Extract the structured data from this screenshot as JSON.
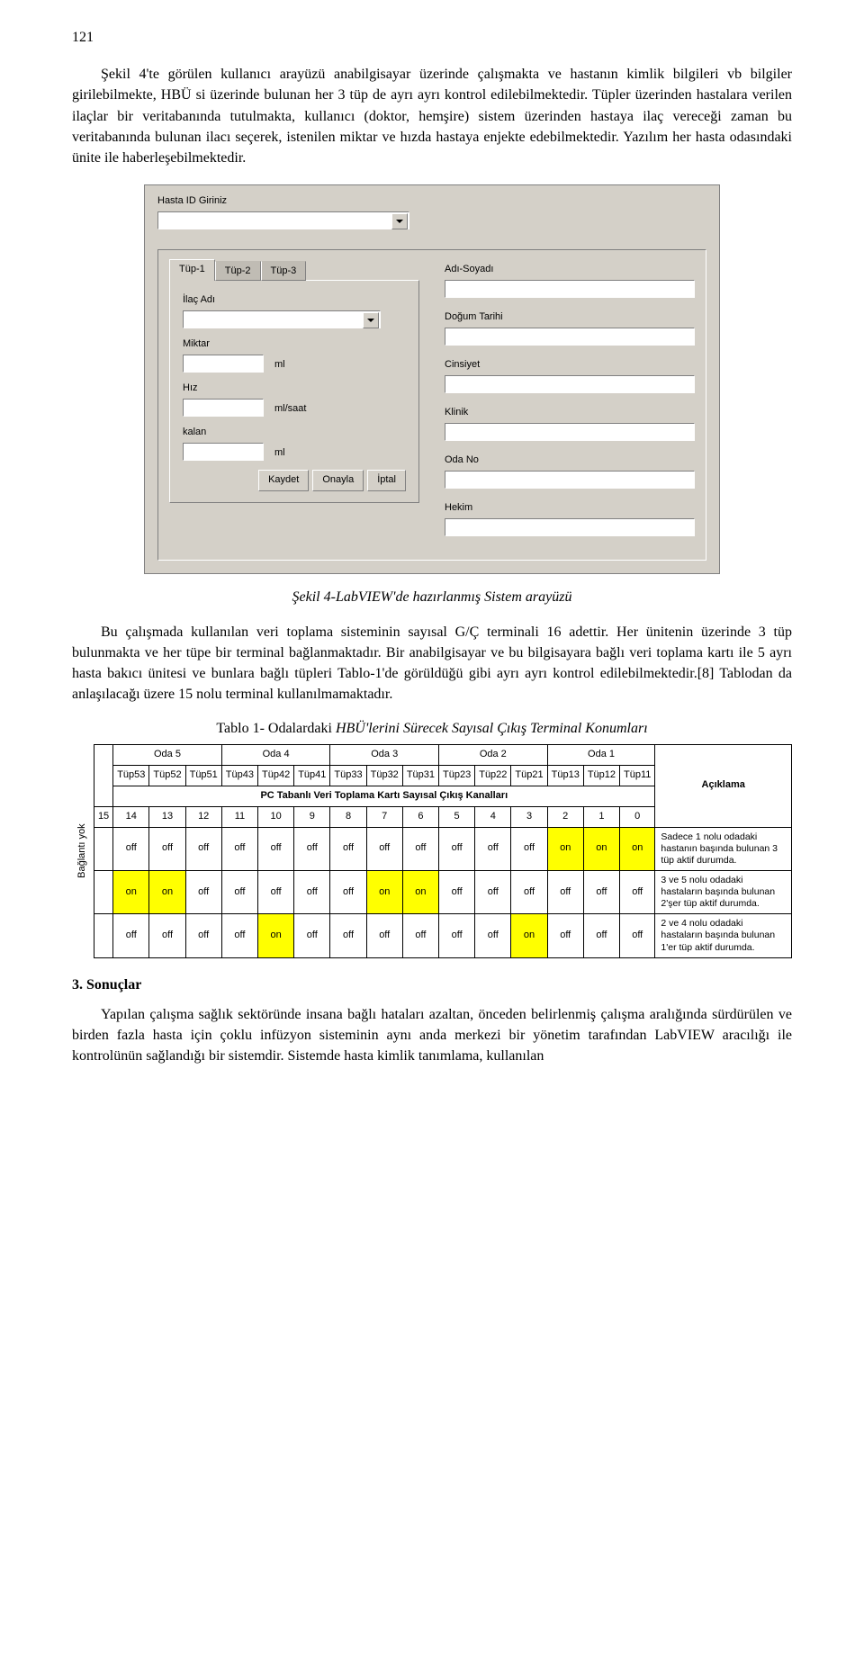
{
  "pageNumber": "121",
  "para1": "Şekil 4'te görülen kullanıcı arayüzü anabilgisayar üzerinde çalışmakta ve hastanın kimlik bilgileri vb bilgiler girilebilmekte, HBÜ si üzerinde bulunan her 3 tüp de ayrı ayrı kontrol edilebilmektedir. Tüpler üzerinden hastalara verilen ilaçlar bir veritabanında tutulmakta, kullanıcı (doktor, hemşire) sistem üzerinden hastaya ilaç vereceği zaman bu veritabanında bulunan ilacı seçerek, istenilen miktar ve hızda hastaya enjekte edebilmektedir. Yazılım her hasta odasındaki ünite ile haberleşebilmektedir.",
  "ui": {
    "hastaIdLabel": "Hasta ID Giriniz",
    "tabs": [
      "Tüp-1",
      "Tüp-2",
      "Tüp-3"
    ],
    "ilacAdi": "İlaç Adı",
    "miktar": "Miktar",
    "miktarUnit": "ml",
    "hiz": "Hız",
    "hizUnit": "ml/saat",
    "kalan": "kalan",
    "kalanUnit": "ml",
    "buttons": {
      "kaydet": "Kaydet",
      "onayla": "Onayla",
      "iptal": "İptal"
    },
    "right": {
      "adSoyad": "Adı-Soyadı",
      "dogumTarihi": "Doğum Tarihi",
      "cinsiyet": "Cinsiyet",
      "klinik": "Klinik",
      "odaNo": "Oda No",
      "hekim": "Hekim"
    }
  },
  "figCaption": "Şekil 4-LabVIEW'de hazırlanmış Sistem arayüzü",
  "para2": "Bu çalışmada kullanılan veri toplama sisteminin sayısal G/Ç terminali 16 adettir. Her ünitenin üzerinde 3 tüp bulunmakta ve her tüpe bir terminal bağlanmaktadır. Bir anabilgisayar ve bu bilgisayara bağlı veri toplama kartı ile 5 ayrı hasta bakıcı ünitesi ve bunlara bağlı tüpleri Tablo-1'de görüldüğü gibi ayrı ayrı kontrol edilebilmektedir.[8] Tablodan da anlaşılacağı üzere 15 nolu terminal kullanılmamaktadır.",
  "tableCaptionPrefix": "Tablo 1- Odalardaki ",
  "tableCaptionItalic": "HBÜ'lerini Sürecek Sayısal Çıkış Terminal Konumları",
  "verticalLabel": "Bağlantı yok",
  "table": {
    "rooms": [
      "Oda 5",
      "Oda 4",
      "Oda 3",
      "Oda 2",
      "Oda 1"
    ],
    "tubes": [
      "Tüp53",
      "Tüp52",
      "Tüp51",
      "Tüp43",
      "Tüp42",
      "Tüp41",
      "Tüp33",
      "Tüp32",
      "Tüp31",
      "Tüp23",
      "Tüp22",
      "Tüp21",
      "Tüp13",
      "Tüp12",
      "Tüp11"
    ],
    "pcTitle": "PC Tabanlı Veri Toplama  Kartı Sayısal Çıkış Kanalları",
    "aciklama": "Açıklama",
    "channels": [
      "15",
      "14",
      "13",
      "12",
      "11",
      "10",
      "9",
      "8",
      "7",
      "6",
      "5",
      "4",
      "3",
      "2",
      "1",
      "0"
    ],
    "rows": [
      {
        "cells": [
          "",
          "off",
          "off",
          "off",
          "off",
          "off",
          "off",
          "off",
          "off",
          "off",
          "off",
          "off",
          "off",
          "on",
          "on",
          "on"
        ],
        "on": [
          13,
          14,
          15
        ],
        "desc": "Sadece 1 nolu odadaki hastanın başında bulunan 3 tüp aktif durumda."
      },
      {
        "cells": [
          "",
          "on",
          "on",
          "off",
          "off",
          "off",
          "off",
          "off",
          "on",
          "on",
          "off",
          "off",
          "off",
          "off",
          "off",
          "off"
        ],
        "on": [
          1,
          2,
          8,
          9
        ],
        "desc": "3 ve 5 nolu odadaki hastaların başında bulunan 2'şer tüp aktif durumda."
      },
      {
        "cells": [
          "",
          "off",
          "off",
          "off",
          "off",
          "on",
          "off",
          "off",
          "off",
          "off",
          "off",
          "off",
          "on",
          "off",
          "off",
          "off"
        ],
        "on": [
          5,
          12
        ],
        "desc": "2 ve 4 nolu odadaki hastaların başında bulunan 1'er tüp aktif durumda."
      }
    ]
  },
  "sectionTitle": "3. Sonuçlar",
  "para3": "Yapılan çalışma sağlık sektöründe insana bağlı hataları azaltan, önceden belirlenmiş çalışma aralığında sürdürülen ve birden fazla hasta için çoklu infüzyon sisteminin aynı anda merkezi bir yönetim tarafından LabVIEW aracılığı ile kontrolünün sağlandığı bir sistemdir. Sistemde hasta kimlik tanımlama, kullanılan"
}
